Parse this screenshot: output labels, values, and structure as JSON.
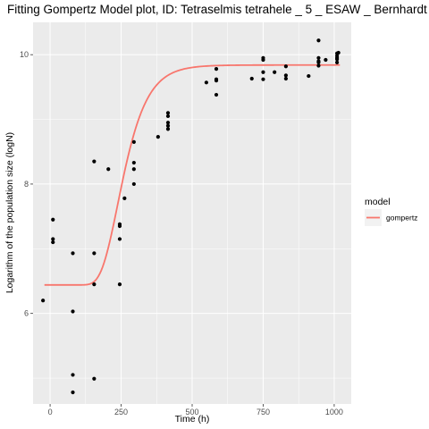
{
  "chart_data": {
    "type": "scatter",
    "title": "Fitting Gompertz Model plot, ID: Tetraselmis tetrahele _ 5 _ ESAW _ Bernhardt",
    "xlabel": "Time (h)",
    "ylabel": "Logarithm of the population size (logN)",
    "xlim": [
      -60,
      1060
    ],
    "ylim": [
      4.6,
      10.5
    ],
    "x_ticks": [
      0,
      250,
      500,
      750,
      1000
    ],
    "x_tick_labels": [
      "0",
      "250",
      "500",
      "750",
      "1000"
    ],
    "y_ticks": [
      6,
      8,
      10
    ],
    "y_tick_labels": [
      "6",
      "8",
      "10"
    ],
    "grid": true,
    "legend": {
      "title": "model",
      "position": "right",
      "entries": [
        {
          "label": "gompertz",
          "color": "#F8766D"
        }
      ]
    },
    "points": [
      [
        -25,
        6.2
      ],
      [
        10,
        7.45
      ],
      [
        10,
        7.15
      ],
      [
        10,
        7.1
      ],
      [
        80,
        6.93
      ],
      [
        80,
        6.03
      ],
      [
        80,
        5.05
      ],
      [
        80,
        4.78
      ],
      [
        155,
        8.35
      ],
      [
        155,
        6.93
      ],
      [
        155,
        6.45
      ],
      [
        155,
        4.99
      ],
      [
        205,
        8.23
      ],
      [
        245,
        7.38
      ],
      [
        245,
        7.35
      ],
      [
        245,
        7.15
      ],
      [
        245,
        6.45
      ],
      [
        262,
        7.78
      ],
      [
        295,
        8.65
      ],
      [
        295,
        8.33
      ],
      [
        295,
        8.23
      ],
      [
        295,
        8.0
      ],
      [
        380,
        8.73
      ],
      [
        415,
        9.1
      ],
      [
        415,
        9.05
      ],
      [
        415,
        8.95
      ],
      [
        415,
        8.9
      ],
      [
        415,
        8.85
      ],
      [
        550,
        9.57
      ],
      [
        585,
        9.78
      ],
      [
        585,
        9.62
      ],
      [
        585,
        9.6
      ],
      [
        585,
        9.38
      ],
      [
        710,
        9.63
      ],
      [
        750,
        9.95
      ],
      [
        750,
        9.92
      ],
      [
        750,
        9.73
      ],
      [
        750,
        9.62
      ],
      [
        790,
        9.73
      ],
      [
        830,
        9.82
      ],
      [
        830,
        9.68
      ],
      [
        830,
        9.63
      ],
      [
        910,
        9.67
      ],
      [
        945,
        10.22
      ],
      [
        945,
        9.95
      ],
      [
        945,
        9.9
      ],
      [
        945,
        9.88
      ],
      [
        945,
        9.83
      ],
      [
        970,
        9.92
      ],
      [
        1010,
        10.02
      ],
      [
        1010,
        9.98
      ],
      [
        1010,
        9.95
      ],
      [
        1010,
        9.93
      ],
      [
        1010,
        9.88
      ],
      [
        1015,
        10.03
      ]
    ],
    "series": [
      {
        "name": "gompertz",
        "color": "#F8766D",
        "params": {
          "y0": 6.44,
          "A": 3.4,
          "mu": 0.0215,
          "lambda": 180
        }
      }
    ]
  }
}
